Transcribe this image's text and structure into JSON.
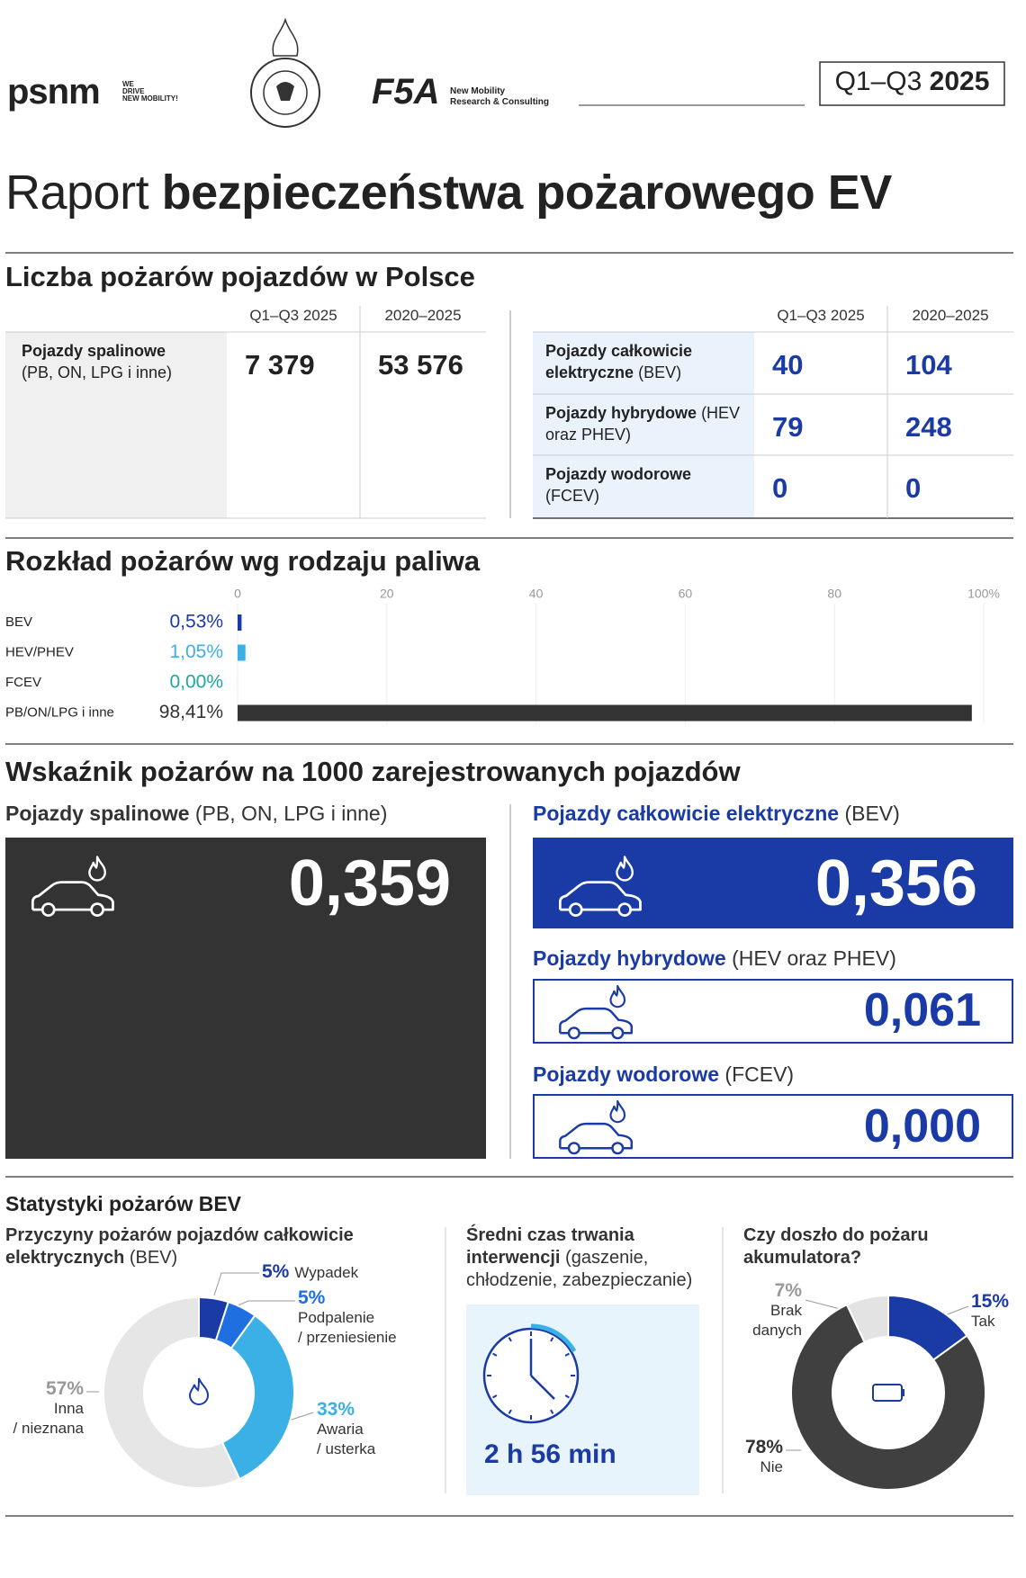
{
  "header": {
    "psnm_logo": "psnm",
    "psnm_tagline": "WE\nDRIVE\nNEW MOBILITY!",
    "f5a_logo": "F5A",
    "f5a_tagline": "New Mobility\nResearch & Consulting",
    "period": "Q1–Q3",
    "year": "2025"
  },
  "title": {
    "light": "Raport",
    "bold": "bezpieczeństwa pożarowego EV"
  },
  "fire_counts": {
    "heading": "Liczba pożarów pojazdów w Polsce",
    "left": {
      "columns": [
        "Q1–Q3 2025",
        "2020–2025"
      ],
      "rows": [
        {
          "name": "Pojazdy spalinowe",
          "detail": "(PB, ON, LPG i inne)",
          "values": [
            "7 379",
            "53 576"
          ]
        }
      ]
    },
    "right": {
      "columns": [
        "Q1–Q3 2025",
        "2020–2025"
      ],
      "rows": [
        {
          "name": "Pojazdy całkowicie elektryczne",
          "detail": "(BEV)",
          "values": [
            "40",
            "104"
          ]
        },
        {
          "name": "Pojazdy hybrydowe",
          "detail": "(HEV oraz PHEV)",
          "values": [
            "79",
            "248"
          ]
        },
        {
          "name": "Pojazdy wodorowe",
          "detail": "(FCEV)",
          "values": [
            "0",
            "0"
          ]
        }
      ]
    }
  },
  "chart_data": [
    {
      "type": "bar",
      "orientation": "horizontal",
      "title": "Rozkład pożarów wg rodzaju paliwa",
      "categories": [
        "BEV",
        "HEV/PHEV",
        "FCEV",
        "PB/ON/LPG i inne"
      ],
      "values": [
        0.53,
        1.05,
        0,
        98.41
      ],
      "value_labels": [
        "0,53%",
        "1,05%",
        "0,00%",
        "98,41%"
      ],
      "colors": [
        "#1a3aa5",
        "#3bb0e6",
        "#1ca89e",
        "#333333"
      ],
      "xlim": [
        0,
        100
      ],
      "xticks": [
        0,
        20,
        40,
        60,
        80,
        {
          "value": 100,
          "label": "100%"
        }
      ],
      "grid": true
    },
    {
      "type": "donut",
      "title": "Przyczyny pożarów pojazdów całkowicie elektrycznych",
      "subtitle": "(BEV)",
      "categories": [
        "Wypadek",
        "Podpalenie\n/ przeniesienie",
        "Awaria\n/ usterka",
        "Inna\n/ nieznana"
      ],
      "values": [
        5,
        5,
        33,
        57
      ],
      "value_labels": [
        "5%",
        "5%",
        "33%",
        "57%"
      ],
      "colors": [
        "#1a3aa5",
        "#1f6fe0",
        "#3bb0e6",
        "#e6e6e6"
      ],
      "label_colors": [
        "#1a3aa5",
        "#1f6fe0",
        "#3bb0e6",
        "#999999"
      ]
    },
    {
      "type": "donut",
      "title": "Czy doszło do pożaru akumulatora?",
      "categories": [
        "Tak",
        "Nie",
        "Brak\ndanych"
      ],
      "values": [
        15,
        78,
        7
      ],
      "value_labels": [
        "15%",
        "78%",
        "7%"
      ],
      "colors": [
        "#1a3aa5",
        "#404040",
        "#e3e3e3"
      ],
      "label_colors": [
        "#1a3aa5",
        "#333333",
        "#999999"
      ]
    }
  ],
  "fire_rate": {
    "heading": "Wskaźnik pożarów na 1000 zarejestrowanych pojazdów",
    "items": [
      {
        "name": "Pojazdy spalinowe",
        "detail": "(PB, ON, LPG i inne)",
        "value": "0,359"
      },
      {
        "name": "Pojazdy całkowicie elektryczne",
        "detail": "(BEV)",
        "value": "0,356"
      },
      {
        "name": "Pojazdy hybrydowe",
        "detail": "(HEV oraz PHEV)",
        "value": "0,061"
      },
      {
        "name": "Pojazdy wodorowe",
        "detail": "(FCEV)",
        "value": "0,000"
      }
    ]
  },
  "bev_stats": {
    "heading": "Statystyki pożarów BEV",
    "duration": {
      "title": "Średni czas trwania interwencji",
      "detail": "(gaszenie, chłodzenie, zabezpieczanie)",
      "value": "2 h 56 min"
    }
  }
}
